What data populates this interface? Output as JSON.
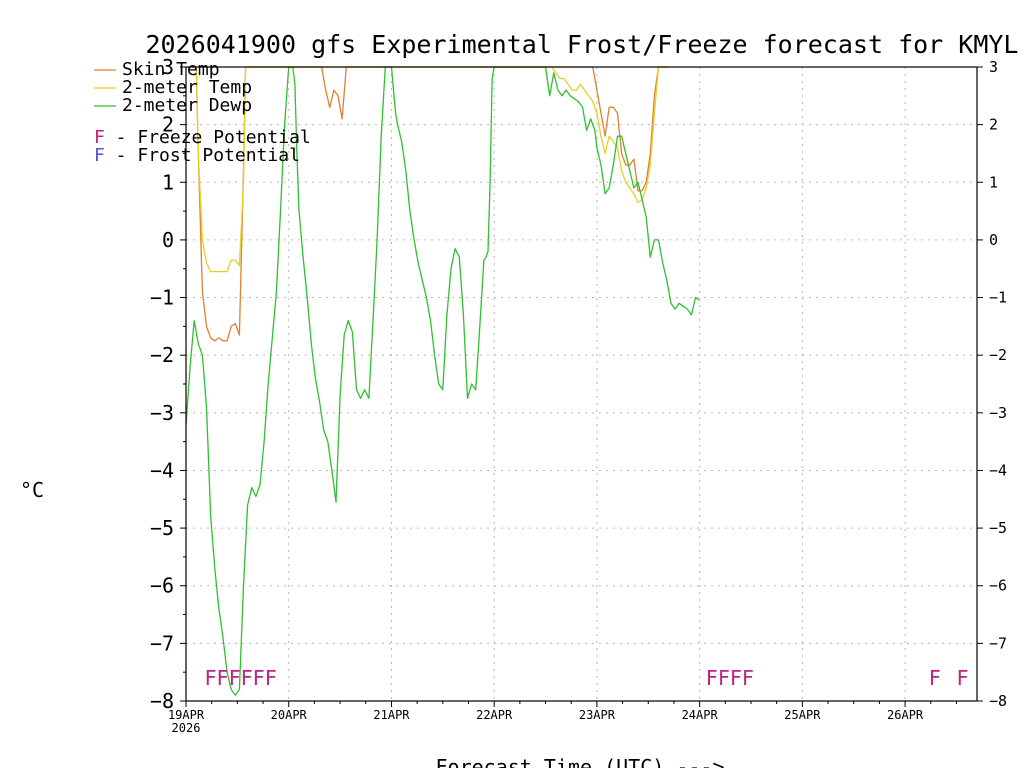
{
  "chart_data": {
    "type": "line",
    "title": "2026041900 gfs Experimental Frost/Freeze forecast for KMYL",
    "xlabel": "Forecast Time (UTC) --->",
    "ylabel": "°C",
    "ylim": [
      -8,
      3
    ],
    "xlim": [
      0,
      7.7
    ],
    "grid": true,
    "x_ticks": [
      {
        "x": 0,
        "label": "19APR",
        "sublabel": "2026"
      },
      {
        "x": 1,
        "label": "20APR"
      },
      {
        "x": 2,
        "label": "21APR"
      },
      {
        "x": 3,
        "label": "22APR"
      },
      {
        "x": 4,
        "label": "23APR"
      },
      {
        "x": 5,
        "label": "24APR"
      },
      {
        "x": 6,
        "label": "25APR"
      },
      {
        "x": 7,
        "label": "26APR"
      }
    ],
    "y_ticks": [
      -8,
      -7,
      -6,
      -5,
      -4,
      -3,
      -2,
      -1,
      0,
      1,
      2,
      3
    ],
    "legend": [
      {
        "label": "Skin Temp",
        "color": "#e08030"
      },
      {
        "label": "2-meter Temp",
        "color": "#e8d020"
      },
      {
        "label": "2-meter Dewp",
        "color": "#30c030"
      }
    ],
    "notes": [
      {
        "marker": "F",
        "text": " - Freeze Potential",
        "color": "#c0207f"
      },
      {
        "marker": "F",
        "text": " - Frost Potential",
        "color": "#5050e0"
      }
    ],
    "series": [
      {
        "name": "Skin Temp",
        "color": "#e08030",
        "x": [
          0.1,
          0.12,
          0.16,
          0.2,
          0.24,
          0.28,
          0.32,
          0.36,
          0.4,
          0.44,
          0.48,
          0.52,
          0.56,
          0.58,
          0.6,
          0.62,
          1.32,
          1.36,
          1.4,
          1.44,
          1.48,
          1.52,
          1.56,
          1.6,
          1.62,
          3.96,
          4.0,
          4.04,
          4.08,
          4.12,
          4.16,
          4.2,
          4.24,
          4.28,
          4.32,
          4.36,
          4.4,
          4.44,
          4.48,
          4.52,
          4.56,
          4.6,
          4.64,
          4.68,
          4.7
        ],
        "y": [
          3.2,
          1.5,
          -0.9,
          -1.5,
          -1.7,
          -1.75,
          -1.7,
          -1.75,
          -1.75,
          -1.5,
          -1.45,
          -1.65,
          1.2,
          3.2,
          3.2,
          3.2,
          3.2,
          2.6,
          2.3,
          2.6,
          2.5,
          2.1,
          3.2,
          3.2,
          3.2,
          3.2,
          2.6,
          2.2,
          1.8,
          2.3,
          2.3,
          2.2,
          1.5,
          1.3,
          1.3,
          1.4,
          0.85,
          0.85,
          1.0,
          1.5,
          2.5,
          3.2,
          3.2,
          3.2,
          3.2
        ]
      },
      {
        "name": "2-meter Temp",
        "color": "#e8d020",
        "x": [
          0.1,
          0.12,
          0.16,
          0.2,
          0.24,
          0.28,
          0.32,
          0.36,
          0.4,
          0.44,
          0.48,
          0.52,
          0.56,
          0.58,
          0.6,
          3.56,
          3.6,
          3.64,
          3.68,
          3.72,
          3.76,
          3.8,
          3.84,
          3.88,
          3.92,
          3.96,
          4.0,
          4.04,
          4.08,
          4.12,
          4.16,
          4.2,
          4.24,
          4.28,
          4.32,
          4.36,
          4.4,
          4.44,
          4.48,
          4.52,
          4.56,
          4.6,
          4.64,
          4.66,
          4.7
        ],
        "y": [
          3.2,
          1.5,
          0.0,
          -0.4,
          -0.55,
          -0.55,
          -0.55,
          -0.55,
          -0.55,
          -0.35,
          -0.35,
          -0.45,
          1.0,
          3.0,
          3.2,
          3.2,
          2.9,
          2.8,
          2.8,
          2.7,
          2.6,
          2.6,
          2.7,
          2.6,
          2.5,
          2.4,
          2.2,
          1.8,
          1.5,
          1.8,
          1.7,
          1.6,
          1.2,
          1.0,
          0.9,
          0.8,
          0.65,
          0.7,
          0.9,
          1.3,
          2.2,
          3.0,
          3.2,
          3.2,
          3.2
        ]
      },
      {
        "name": "2-meter Dewp",
        "color": "#30c030",
        "x": [
          0.0,
          0.04,
          0.08,
          0.12,
          0.16,
          0.2,
          0.24,
          0.28,
          0.32,
          0.36,
          0.4,
          0.44,
          0.48,
          0.52,
          0.56,
          0.6,
          0.64,
          0.68,
          0.72,
          0.76,
          0.8,
          0.84,
          0.88,
          0.92,
          0.96,
          1.0,
          1.02,
          1.04,
          1.06,
          1.08,
          1.1,
          1.14,
          1.18,
          1.22,
          1.26,
          1.3,
          1.34,
          1.38,
          1.42,
          1.46,
          1.5,
          1.54,
          1.58,
          1.62,
          1.66,
          1.7,
          1.74,
          1.78,
          1.82,
          1.86,
          1.9,
          1.94,
          1.98,
          2.0,
          2.02,
          2.04,
          2.06,
          2.1,
          2.14,
          2.18,
          2.22,
          2.26,
          2.3,
          2.34,
          2.38,
          2.42,
          2.46,
          2.5,
          2.54,
          2.58,
          2.62,
          2.66,
          2.7,
          2.74,
          2.78,
          2.82,
          2.86,
          2.9,
          2.92,
          2.94,
          2.96,
          2.98,
          3.0,
          3.02,
          3.04,
          3.5,
          3.54,
          3.58,
          3.62,
          3.66,
          3.7,
          3.74,
          3.78,
          3.82,
          3.86,
          3.9,
          3.94,
          3.98,
          4.0,
          4.04,
          4.08,
          4.12,
          4.16,
          4.2,
          4.24,
          4.28,
          4.32,
          4.36,
          4.4,
          4.44,
          4.48,
          4.52,
          4.56,
          4.6,
          4.64,
          4.68,
          4.72,
          4.76,
          4.8,
          4.84,
          4.88,
          4.92,
          4.96,
          5.0
        ],
        "y": [
          -3.2,
          -2.2,
          -1.4,
          -1.8,
          -2.0,
          -2.9,
          -4.8,
          -5.7,
          -6.4,
          -6.9,
          -7.5,
          -7.8,
          -7.9,
          -7.8,
          -6.0,
          -4.6,
          -4.3,
          -4.45,
          -4.25,
          -3.5,
          -2.5,
          -1.7,
          -0.9,
          0.5,
          2.0,
          3.2,
          3.2,
          3.2,
          2.7,
          1.5,
          0.5,
          -0.3,
          -1.0,
          -1.8,
          -2.4,
          -2.8,
          -3.3,
          -3.5,
          -4.0,
          -4.55,
          -2.7,
          -1.65,
          -1.4,
          -1.6,
          -2.6,
          -2.75,
          -2.6,
          -2.75,
          -1.4,
          0.0,
          1.8,
          3.2,
          3.2,
          3.2,
          2.6,
          2.2,
          2.0,
          1.7,
          1.2,
          0.5,
          0.0,
          -0.4,
          -0.7,
          -1.0,
          -1.4,
          -2.0,
          -2.5,
          -2.6,
          -1.3,
          -0.5,
          -0.15,
          -0.3,
          -1.3,
          -2.75,
          -2.5,
          -2.6,
          -1.5,
          -0.35,
          -0.3,
          -0.2,
          1.0,
          2.8,
          3.2,
          3.2,
          3.2,
          3.2,
          2.5,
          2.9,
          2.6,
          2.5,
          2.6,
          2.5,
          2.45,
          2.4,
          2.3,
          1.9,
          2.1,
          1.9,
          1.6,
          1.3,
          0.8,
          0.9,
          1.3,
          1.8,
          1.8,
          1.5,
          1.2,
          0.9,
          1.0,
          0.7,
          0.4,
          -0.3,
          0.0,
          0.0,
          -0.4,
          -0.7,
          -1.1,
          -1.2,
          -1.1,
          -1.15,
          -1.2,
          -1.3,
          -1.0,
          -1.05
        ]
      }
    ],
    "annotations": [
      {
        "text": "FFFFFF",
        "x": 0.18,
        "y": -7.6,
        "color": "#c0207f"
      },
      {
        "text": "FFFF",
        "x": 5.06,
        "y": -7.6,
        "color": "#c0207f"
      },
      {
        "text": "F",
        "x": 7.23,
        "y": -7.6,
        "color": "#c0207f"
      },
      {
        "text": "F",
        "x": 7.5,
        "y": -7.6,
        "color": "#c0207f"
      }
    ]
  }
}
